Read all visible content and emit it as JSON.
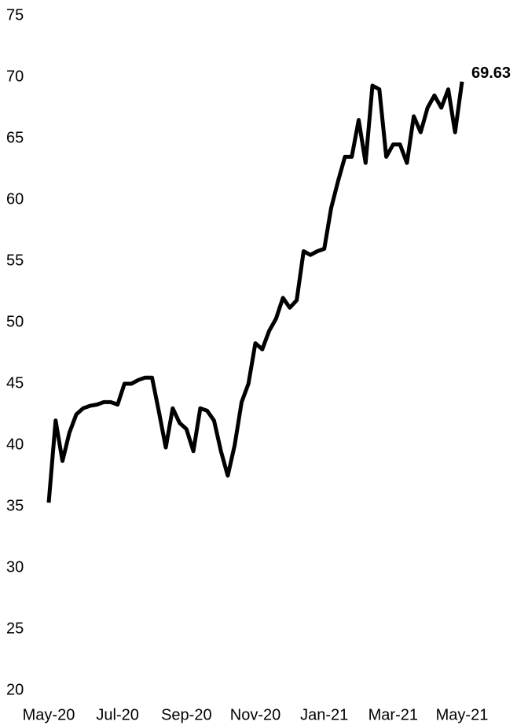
{
  "chart_data": {
    "type": "line",
    "categories": [
      "May-20",
      null,
      null,
      null,
      null,
      null,
      null,
      null,
      null,
      null,
      "Jul-20",
      null,
      null,
      null,
      null,
      null,
      null,
      null,
      null,
      null,
      "Sep-20",
      null,
      null,
      null,
      null,
      null,
      null,
      null,
      null,
      null,
      "Nov-20",
      null,
      null,
      null,
      null,
      null,
      null,
      null,
      null,
      null,
      "Jan-21",
      null,
      null,
      null,
      null,
      null,
      null,
      null,
      null,
      null,
      "Mar-21",
      null,
      null,
      null,
      null,
      null,
      null,
      null,
      null,
      null,
      "May-21"
    ],
    "series": [
      {
        "color": "#000000",
        "values": [
          35.3,
          42,
          38.7,
          41,
          42.5,
          43,
          43.2,
          43.3,
          43.5,
          43.5,
          43.3,
          45,
          45,
          45.3,
          45.5,
          45.5,
          42.7,
          39.8,
          43,
          41.8,
          41.3,
          39.5,
          43,
          42.8,
          42,
          39.5,
          37.5,
          40,
          43.5,
          45,
          48.3,
          47.8,
          49.3,
          50.3,
          52,
          51.2,
          51.8,
          55.8,
          55.5,
          55.8,
          56,
          59.3,
          61.5,
          63.5,
          63.5,
          66.5,
          63,
          69.3,
          69,
          63.5,
          64.5,
          64.5,
          63,
          66.8,
          65.5,
          67.5,
          68.5,
          67.5,
          69,
          65.5,
          69.63
        ]
      }
    ],
    "ylim": [
      20,
      75
    ],
    "yticks": [
      20,
      25,
      30,
      35,
      40,
      45,
      50,
      55,
      60,
      65,
      70,
      75
    ],
    "grid": false
  }
}
